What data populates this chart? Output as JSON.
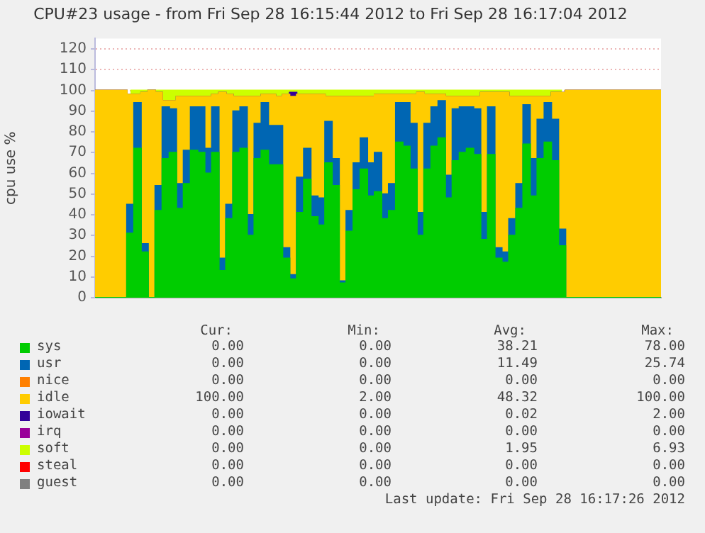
{
  "chart_data": {
    "type": "area",
    "stacked": true,
    "title": "CPU#23 usage - from Fri Sep 28 16:15:44 2012 to Fri Sep 28 16:17:04 2012",
    "ylabel": "cpu use %",
    "categories": [
      null,
      null,
      null,
      null,
      null,
      null,
      null,
      null,
      null,
      null,
      null,
      null,
      null,
      null,
      null,
      null,
      null,
      null,
      null,
      null,
      null,
      null,
      null,
      null,
      null,
      null,
      null,
      null,
      null,
      null,
      null,
      null,
      null,
      null,
      null,
      null,
      null,
      null,
      null,
      null,
      null,
      null,
      null,
      null,
      null,
      null,
      null,
      null,
      null,
      null,
      null,
      null,
      null,
      null,
      null,
      null,
      null,
      null,
      null,
      null,
      null,
      null,
      null,
      null,
      null,
      null,
      null,
      null,
      null,
      null,
      null,
      null,
      null,
      null,
      null,
      null,
      null,
      null,
      null,
      null,
      null
    ],
    "ylim": [
      0,
      125
    ],
    "yticks": [
      0,
      10,
      20,
      30,
      40,
      50,
      60,
      70,
      80,
      90,
      100,
      110,
      120
    ],
    "grid": "y",
    "legend": "bottom",
    "series": [
      {
        "name": "sys",
        "color": "#00cc00",
        "values": [
          0,
          0,
          0,
          0,
          0,
          31,
          72,
          22,
          0,
          42,
          67,
          70,
          43,
          55,
          71,
          70,
          60,
          70,
          13,
          38,
          70,
          72,
          30,
          67,
          71,
          64,
          64,
          19,
          9,
          41,
          57,
          39,
          35,
          65,
          54,
          7,
          32,
          52,
          62,
          49,
          51,
          38,
          42,
          75,
          73,
          62,
          30,
          62,
          73,
          77,
          48,
          66,
          70,
          72,
          69,
          28,
          69,
          19,
          17,
          30,
          43,
          74,
          49,
          67,
          75,
          66,
          25,
          0,
          0,
          0,
          0,
          0,
          0,
          0,
          0,
          0,
          0,
          0,
          0,
          0,
          0
        ]
      },
      {
        "name": "usr",
        "color": "#0066b3",
        "values": [
          0,
          0,
          0,
          0,
          0,
          14,
          22,
          4,
          0,
          12,
          25,
          21,
          12,
          16,
          21,
          22,
          12,
          22,
          6,
          7,
          20,
          20,
          10,
          17,
          23,
          19,
          19,
          5,
          2,
          17,
          15,
          10,
          13,
          20,
          13,
          1,
          10,
          13,
          15,
          16,
          19,
          12,
          13,
          19,
          21,
          22,
          11,
          22,
          19,
          18,
          11,
          25,
          22,
          20,
          22,
          13,
          23,
          5,
          5,
          8,
          12,
          19,
          18,
          19,
          19,
          20,
          8,
          0,
          0,
          0,
          0,
          0,
          0,
          0,
          0,
          0,
          0,
          0,
          0,
          0,
          0
        ]
      },
      {
        "name": "nice",
        "color": "#ff8000",
        "values": [
          null,
          null,
          null,
          null,
          null,
          null,
          null,
          null,
          null,
          null,
          null,
          null,
          null,
          null,
          null,
          null,
          null,
          null,
          null,
          null,
          null,
          null,
          null,
          null,
          null,
          null,
          null,
          null,
          null,
          null,
          null,
          null,
          null,
          null,
          null,
          null,
          null,
          null,
          null,
          null,
          null,
          null,
          null,
          null,
          null,
          null,
          null,
          null,
          null,
          null,
          null,
          null,
          null,
          null,
          null,
          null,
          null,
          null,
          null,
          null,
          null,
          null,
          null,
          null,
          null,
          null,
          null,
          null,
          null,
          null,
          null,
          null,
          null,
          null,
          null,
          null,
          null,
          null,
          null,
          null,
          null
        ]
      },
      {
        "name": "idle",
        "color": "#ffcc00",
        "values": [
          100,
          100,
          100,
          100,
          100,
          53,
          4,
          73,
          100,
          45,
          3,
          4,
          42,
          26,
          5,
          5,
          25,
          6,
          80,
          53,
          7,
          5,
          57,
          13,
          4,
          15,
          14,
          74,
          86,
          40,
          26,
          49,
          50,
          12,
          30,
          89,
          55,
          32,
          20,
          32,
          28,
          48,
          43,
          4,
          4,
          14,
          58,
          14,
          6,
          3,
          38,
          6,
          5,
          5,
          6,
          58,
          7,
          75,
          77,
          59,
          42,
          4,
          30,
          11,
          3,
          13,
          66,
          100,
          100,
          100,
          100,
          100,
          100,
          100,
          100,
          100,
          100,
          100,
          100,
          100,
          100
        ]
      },
      {
        "name": "iowait",
        "color": "#330099",
        "values": [
          0,
          0,
          0,
          0,
          0,
          0,
          0,
          0,
          0,
          0,
          0,
          0,
          0,
          0,
          0,
          0,
          0,
          0,
          0,
          0,
          0,
          0,
          0,
          0,
          0,
          0,
          0,
          0,
          2,
          0,
          0,
          0,
          0,
          0,
          0,
          0,
          0,
          0,
          0,
          0,
          0,
          0,
          0,
          0,
          0,
          0,
          0,
          0,
          0,
          0,
          0,
          0,
          0,
          0,
          0,
          0,
          0,
          0,
          0,
          0,
          0,
          0,
          0,
          0,
          0,
          0,
          0,
          0,
          0,
          0,
          0,
          0,
          0,
          0,
          0,
          0,
          0,
          0,
          0,
          0,
          0
        ]
      },
      {
        "name": "irq",
        "color": "#990099",
        "values": [
          null,
          null,
          null,
          null,
          null,
          null,
          null,
          null,
          null,
          null,
          null,
          null,
          null,
          null,
          null,
          null,
          null,
          null,
          null,
          null,
          null,
          null,
          null,
          null,
          null,
          null,
          null,
          null,
          null,
          null,
          null,
          null,
          null,
          null,
          null,
          null,
          null,
          null,
          null,
          null,
          null,
          null,
          null,
          null,
          null,
          null,
          null,
          null,
          null,
          null,
          null,
          null,
          null,
          null,
          null,
          null,
          null,
          null,
          null,
          null,
          null,
          null,
          null,
          null,
          null,
          null,
          null,
          null,
          null,
          null,
          null,
          null,
          null,
          null,
          null,
          null,
          null,
          null,
          null,
          null,
          null
        ]
      },
      {
        "name": "soft",
        "color": "#ccff00",
        "values": [
          null,
          null,
          null,
          null,
          null,
          2,
          2,
          1,
          0,
          1,
          5,
          5,
          3,
          3,
          3,
          3,
          3,
          2,
          1,
          2,
          3,
          3,
          3,
          3,
          2,
          2,
          3,
          2,
          1,
          2,
          2,
          2,
          2,
          3,
          3,
          3,
          3,
          3,
          3,
          3,
          2,
          2,
          2,
          2,
          2,
          2,
          1,
          2,
          2,
          2,
          3,
          3,
          3,
          3,
          3,
          1,
          1,
          1,
          1,
          3,
          3,
          3,
          3,
          3,
          3,
          1,
          1,
          null,
          null,
          null,
          null,
          null,
          null,
          null,
          null,
          null,
          null,
          null,
          null,
          null,
          null
        ]
      },
      {
        "name": "steal",
        "color": "#ff0000",
        "values": [
          null,
          null,
          null,
          null,
          null,
          null,
          null,
          null,
          null,
          null,
          null,
          null,
          null,
          null,
          null,
          null,
          null,
          null,
          null,
          null,
          null,
          null,
          null,
          null,
          null,
          null,
          null,
          null,
          null,
          null,
          null,
          null,
          null,
          null,
          null,
          null,
          null,
          null,
          null,
          null,
          null,
          null,
          null,
          null,
          null,
          null,
          null,
          null,
          null,
          null,
          null,
          null,
          null,
          null,
          null,
          null,
          null,
          null,
          null,
          null,
          null,
          null,
          null,
          null,
          null,
          null,
          null,
          null,
          null,
          null,
          null,
          null,
          null,
          null,
          null,
          null,
          null,
          null,
          null,
          null,
          null
        ]
      },
      {
        "name": "guest",
        "color": "#808080",
        "values": [
          null,
          null,
          null,
          null,
          null,
          null,
          null,
          null,
          null,
          null,
          null,
          null,
          null,
          null,
          null,
          null,
          null,
          null,
          null,
          null,
          null,
          null,
          null,
          null,
          null,
          null,
          null,
          null,
          null,
          null,
          null,
          null,
          null,
          null,
          null,
          null,
          null,
          null,
          null,
          null,
          null,
          null,
          null,
          null,
          null,
          null,
          null,
          null,
          null,
          null,
          null,
          null,
          null,
          null,
          null,
          null,
          null,
          null,
          null,
          null,
          null,
          null,
          null,
          null,
          null,
          null,
          null,
          null,
          null,
          null,
          null,
          null,
          null,
          null,
          null,
          null,
          null,
          null,
          null,
          null,
          null
        ]
      }
    ],
    "annotations": [
      "Cur:",
      "Min:",
      "Avg:",
      "Max:",
      "0.00",
      "0.00",
      "38.21",
      "78.00",
      "0.00",
      "0.00",
      "11.49",
      "25.74",
      "0.00",
      "0.00",
      "0.00",
      "0.00",
      "100.00",
      "2.00",
      "48.32",
      "100.00",
      "0.00",
      "0.00",
      "0.02",
      "2.00",
      "0.00",
      "0.00",
      "0.00",
      "0.00",
      "0.00",
      "0.00",
      "1.95",
      "6.93",
      "0.00",
      "0.00",
      "0.00",
      "0.00",
      "0.00",
      "0.00",
      "0.00",
      "0.00",
      "Last update: Fri Sep 28 16:17:26 2012"
    ]
  }
}
